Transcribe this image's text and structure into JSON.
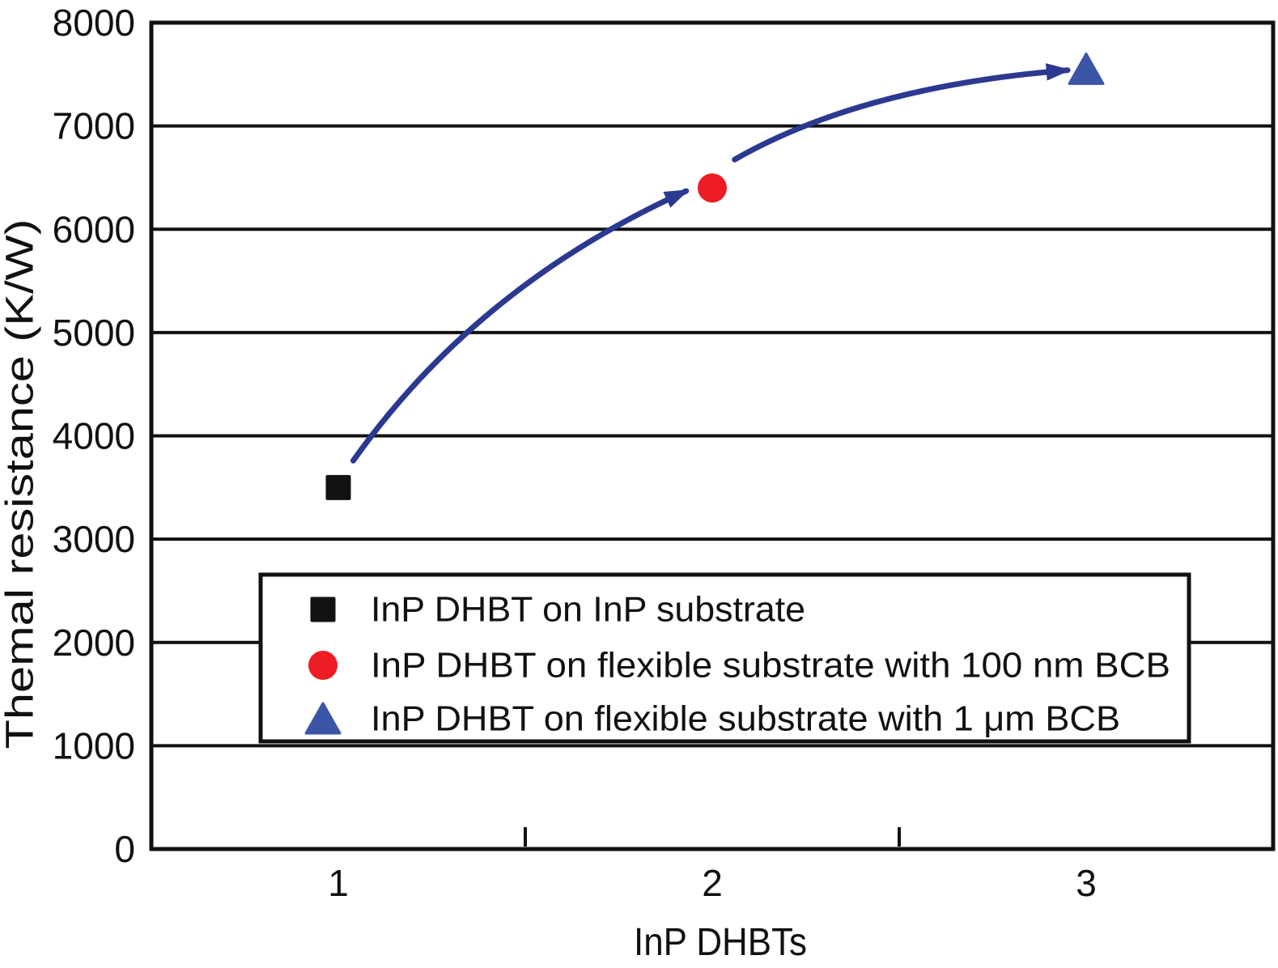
{
  "chart_data": {
    "type": "scatter",
    "title": "",
    "xlabel": "InP DHBTs",
    "ylabel": "Themal resistance (K/W)",
    "xlim": [
      0.5,
      3.5
    ],
    "ylim": [
      0,
      8000
    ],
    "yticks": [
      0,
      1000,
      2000,
      3000,
      4000,
      5000,
      6000,
      7000,
      8000
    ],
    "xticks_major": [
      1,
      2,
      3
    ],
    "xticks_minor": [
      1.5,
      2.5
    ],
    "grid": "horizontal",
    "axis_color": "#111111",
    "series": [
      {
        "name": "InP DHBT on InP substrate",
        "marker": "square",
        "color": "#121212",
        "points": [
          [
            1,
            3500
          ]
        ]
      },
      {
        "name": "InP DHBT on flexible substrate with 100 nm BCB",
        "marker": "circle",
        "color": "#ed1c24",
        "points": [
          [
            2,
            6400
          ]
        ]
      },
      {
        "name": "InP DHBT on flexible substrate with 1 μm BCB",
        "marker": "triangle",
        "color": "#3b55a6",
        "points": [
          [
            3,
            7550
          ]
        ]
      }
    ],
    "arrows": {
      "color": "#2b3990",
      "paths": [
        {
          "from": [
            1.04,
            3760
          ],
          "control": [
            1.37,
            5450
          ],
          "to": [
            1.93,
            6370
          ]
        },
        {
          "from": [
            2.06,
            6675
          ],
          "control": [
            2.4,
            7380
          ],
          "to": [
            2.95,
            7540
          ]
        }
      ]
    },
    "legend": {
      "position": "inside-bottom-left",
      "border": true,
      "entries_from_series": true
    }
  }
}
